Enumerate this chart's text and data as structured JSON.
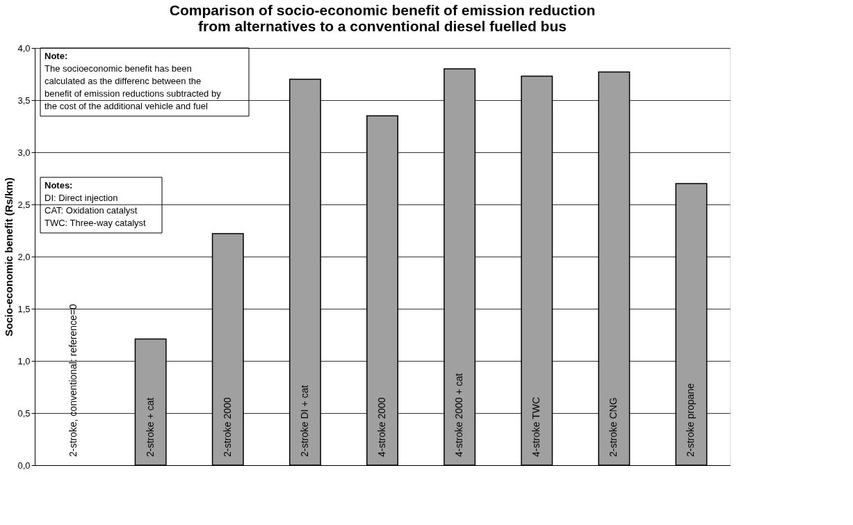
{
  "chart_data": {
    "type": "bar",
    "title": [
      "Comparison of socio-economic benefit of emission reduction",
      "from alternatives to a conventional diesel fuelled bus"
    ],
    "ylabel": "Socio-economic benefit (Rs/km)",
    "categories": [
      "2-stroke, conventional: reference=0",
      "2-stroke + cat",
      "2-stroke 2000",
      "2-stroke DI + cat",
      "4-stroke 2000",
      "4-stroke 2000 + cat",
      "4-stroke TWC",
      "2-stroke CNG",
      "2-stroke propane"
    ],
    "values": [
      0,
      1.21,
      2.22,
      3.7,
      3.35,
      3.8,
      3.73,
      3.77,
      2.7
    ],
    "color": "#a0a0a0",
    "ylim": [
      0,
      4
    ],
    "yticks": [
      {
        "value": 0,
        "label": "0,0"
      },
      {
        "value": 0.5,
        "label": "0,5"
      },
      {
        "value": 1,
        "label": "1,0"
      },
      {
        "value": 1.5,
        "label": "1,5"
      },
      {
        "value": 2,
        "label": "2,0"
      },
      {
        "value": 2.5,
        "label": "2,5"
      },
      {
        "value": 3,
        "label": "3,0"
      },
      {
        "value": 3.5,
        "label": "3,5"
      },
      {
        "value": 4,
        "label": "4,0"
      }
    ],
    "grid": "y",
    "tick_labels": "y",
    "annotations": [
      "Note:\nThe socioeconomic benefit has been\ncalculated as the differenc between the\nbenefit of emission reductions subtracted by\nthe cost of the additional vehicle and fuel",
      "Notes:\nDI: Direct injection\nCAT: Oxidation catalyst\nTWC: Three-way catalyst"
    ]
  }
}
